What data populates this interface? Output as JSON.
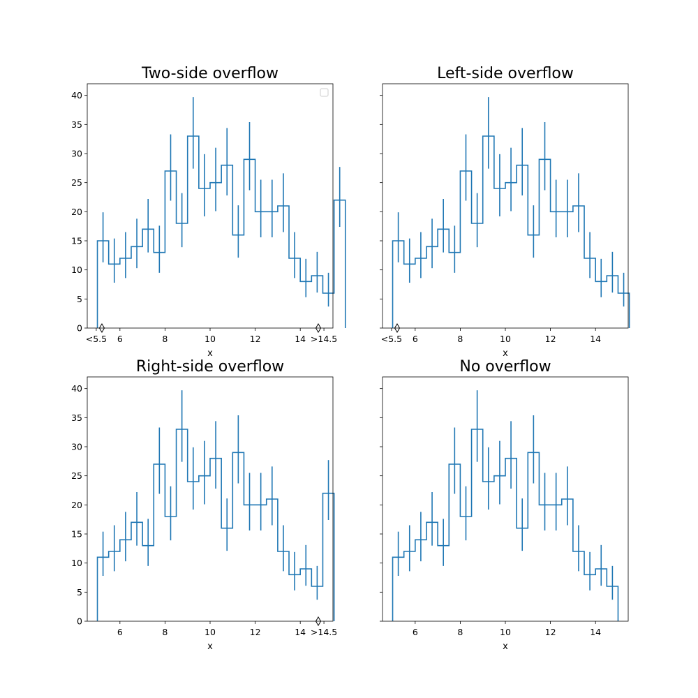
{
  "figure": {
    "colors": {
      "series": "#1f77b4",
      "axes": "#000000",
      "background": "#ffffff"
    }
  },
  "chart_data": [
    {
      "type": "histogram",
      "title": "Two-side overflow",
      "xlabel": "x",
      "ylabel": "",
      "xlim": [
        4.55,
        15.45
      ],
      "ylim": [
        0,
        42
      ],
      "xticks": [
        {
          "value": 4.95,
          "label": "<5.5"
        },
        {
          "value": 6,
          "label": "6"
        },
        {
          "value": 8,
          "label": "8"
        },
        {
          "value": 10,
          "label": "10"
        },
        {
          "value": 12,
          "label": "12"
        },
        {
          "value": 14,
          "label": "14"
        },
        {
          "value": 15.05,
          "label": ">14.5"
        }
      ],
      "yticks": [
        0,
        5,
        10,
        15,
        20,
        25,
        30,
        35,
        40
      ],
      "show_ytick_labels": true,
      "legend": {
        "placement": "top-right",
        "entries": []
      },
      "overflow_markers": [
        5.2,
        14.8
      ],
      "bins": [
        {
          "x0": 5.0,
          "x1": 5.5,
          "value": 15,
          "err_low": 11.3,
          "err_high": 19.9
        },
        {
          "x0": 5.5,
          "x1": 6.0,
          "value": 11,
          "err_low": 7.8,
          "err_high": 15.4
        },
        {
          "x0": 6.0,
          "x1": 6.5,
          "value": 12,
          "err_low": 8.6,
          "err_high": 16.5
        },
        {
          "x0": 6.5,
          "x1": 7.0,
          "value": 14,
          "err_low": 10.3,
          "err_high": 18.8
        },
        {
          "x0": 7.0,
          "x1": 7.5,
          "value": 17,
          "err_low": 13.0,
          "err_high": 22.2
        },
        {
          "x0": 7.5,
          "x1": 8.0,
          "value": 13,
          "err_low": 9.5,
          "err_high": 17.6
        },
        {
          "x0": 8.0,
          "x1": 8.5,
          "value": 27,
          "err_low": 21.9,
          "err_high": 33.3
        },
        {
          "x0": 8.5,
          "x1": 9.0,
          "value": 18,
          "err_low": 13.9,
          "err_high": 23.2
        },
        {
          "x0": 9.0,
          "x1": 9.5,
          "value": 33,
          "err_low": 27.4,
          "err_high": 39.7
        },
        {
          "x0": 9.5,
          "x1": 10.0,
          "value": 24,
          "err_low": 19.2,
          "err_high": 29.9
        },
        {
          "x0": 10.0,
          "x1": 10.5,
          "value": 25,
          "err_low": 20.1,
          "err_high": 31.0
        },
        {
          "x0": 10.5,
          "x1": 11.0,
          "value": 28,
          "err_low": 22.8,
          "err_high": 34.4
        },
        {
          "x0": 11.0,
          "x1": 11.5,
          "value": 16,
          "err_low": 12.1,
          "err_high": 21.1
        },
        {
          "x0": 11.5,
          "x1": 12.0,
          "value": 29,
          "err_low": 23.7,
          "err_high": 35.4
        },
        {
          "x0": 12.0,
          "x1": 12.5,
          "value": 20,
          "err_low": 15.6,
          "err_high": 25.5
        },
        {
          "x0": 12.5,
          "x1": 13.0,
          "value": 20,
          "err_low": 15.6,
          "err_high": 25.5
        },
        {
          "x0": 13.0,
          "x1": 13.5,
          "value": 21,
          "err_low": 16.5,
          "err_high": 26.6
        },
        {
          "x0": 13.5,
          "x1": 14.0,
          "value": 12,
          "err_low": 8.6,
          "err_high": 16.5
        },
        {
          "x0": 14.0,
          "x1": 14.5,
          "value": 8,
          "err_low": 5.3,
          "err_high": 11.9
        },
        {
          "x0": 14.5,
          "x1": 15.0,
          "value": 9,
          "err_low": 6.1,
          "err_high": 13.1
        },
        {
          "x0": 15.0,
          "x1": 15.5,
          "value": 6,
          "err_low": 3.7,
          "err_high": 9.5
        },
        {
          "x0": 15.5,
          "x1": 16.0,
          "value": 22,
          "err_low": 17.4,
          "err_high": 27.7
        }
      ]
    },
    {
      "type": "histogram",
      "title": "Left-side overflow",
      "xlabel": "x",
      "ylabel": "",
      "xlim": [
        4.55,
        15.45
      ],
      "ylim": [
        0,
        42
      ],
      "xticks": [
        {
          "value": 4.95,
          "label": "<5.5"
        },
        {
          "value": 6,
          "label": "6"
        },
        {
          "value": 8,
          "label": "8"
        },
        {
          "value": 10,
          "label": "10"
        },
        {
          "value": 12,
          "label": "12"
        },
        {
          "value": 14,
          "label": "14"
        }
      ],
      "yticks": [
        0,
        5,
        10,
        15,
        20,
        25,
        30,
        35,
        40
      ],
      "show_ytick_labels": false,
      "overflow_markers": [
        5.2
      ],
      "bins": [
        {
          "x0": 5.0,
          "x1": 5.5,
          "value": 15,
          "err_low": 11.3,
          "err_high": 19.9
        },
        {
          "x0": 5.5,
          "x1": 6.0,
          "value": 11,
          "err_low": 7.8,
          "err_high": 15.4
        },
        {
          "x0": 6.0,
          "x1": 6.5,
          "value": 12,
          "err_low": 8.6,
          "err_high": 16.5
        },
        {
          "x0": 6.5,
          "x1": 7.0,
          "value": 14,
          "err_low": 10.3,
          "err_high": 18.8
        },
        {
          "x0": 7.0,
          "x1": 7.5,
          "value": 17,
          "err_low": 13.0,
          "err_high": 22.2
        },
        {
          "x0": 7.5,
          "x1": 8.0,
          "value": 13,
          "err_low": 9.5,
          "err_high": 17.6
        },
        {
          "x0": 8.0,
          "x1": 8.5,
          "value": 27,
          "err_low": 21.9,
          "err_high": 33.3
        },
        {
          "x0": 8.5,
          "x1": 9.0,
          "value": 18,
          "err_low": 13.9,
          "err_high": 23.2
        },
        {
          "x0": 9.0,
          "x1": 9.5,
          "value": 33,
          "err_low": 27.4,
          "err_high": 39.7
        },
        {
          "x0": 9.5,
          "x1": 10.0,
          "value": 24,
          "err_low": 19.2,
          "err_high": 29.9
        },
        {
          "x0": 10.0,
          "x1": 10.5,
          "value": 25,
          "err_low": 20.1,
          "err_high": 31.0
        },
        {
          "x0": 10.5,
          "x1": 11.0,
          "value": 28,
          "err_low": 22.8,
          "err_high": 34.4
        },
        {
          "x0": 11.0,
          "x1": 11.5,
          "value": 16,
          "err_low": 12.1,
          "err_high": 21.1
        },
        {
          "x0": 11.5,
          "x1": 12.0,
          "value": 29,
          "err_low": 23.7,
          "err_high": 35.4
        },
        {
          "x0": 12.0,
          "x1": 12.5,
          "value": 20,
          "err_low": 15.6,
          "err_high": 25.5
        },
        {
          "x0": 12.5,
          "x1": 13.0,
          "value": 20,
          "err_low": 15.6,
          "err_high": 25.5
        },
        {
          "x0": 13.0,
          "x1": 13.5,
          "value": 21,
          "err_low": 16.5,
          "err_high": 26.6
        },
        {
          "x0": 13.5,
          "x1": 14.0,
          "value": 12,
          "err_low": 8.6,
          "err_high": 16.5
        },
        {
          "x0": 14.0,
          "x1": 14.5,
          "value": 8,
          "err_low": 5.3,
          "err_high": 11.9
        },
        {
          "x0": 14.5,
          "x1": 15.0,
          "value": 9,
          "err_low": 6.1,
          "err_high": 13.1
        },
        {
          "x0": 15.0,
          "x1": 15.5,
          "value": 6,
          "err_low": 3.7,
          "err_high": 9.5
        }
      ]
    },
    {
      "type": "histogram",
      "title": "Right-side overflow",
      "xlabel": "x",
      "ylabel": "",
      "xlim": [
        4.55,
        15.45
      ],
      "ylim": [
        0,
        42
      ],
      "xticks": [
        {
          "value": 6,
          "label": "6"
        },
        {
          "value": 8,
          "label": "8"
        },
        {
          "value": 10,
          "label": "10"
        },
        {
          "value": 12,
          "label": "12"
        },
        {
          "value": 14,
          "label": "14"
        },
        {
          "value": 15.05,
          "label": ">14.5"
        }
      ],
      "yticks": [
        0,
        5,
        10,
        15,
        20,
        25,
        30,
        35,
        40
      ],
      "show_ytick_labels": true,
      "overflow_markers": [
        14.8
      ],
      "bins": [
        {
          "x0": 5.0,
          "x1": 5.5,
          "value": 11,
          "err_low": 7.8,
          "err_high": 15.4
        },
        {
          "x0": 5.5,
          "x1": 6.0,
          "value": 12,
          "err_low": 8.6,
          "err_high": 16.5
        },
        {
          "x0": 6.0,
          "x1": 6.5,
          "value": 14,
          "err_low": 10.3,
          "err_high": 18.8
        },
        {
          "x0": 6.5,
          "x1": 7.0,
          "value": 17,
          "err_low": 13.0,
          "err_high": 22.2
        },
        {
          "x0": 7.0,
          "x1": 7.5,
          "value": 13,
          "err_low": 9.5,
          "err_high": 17.6
        },
        {
          "x0": 7.5,
          "x1": 8.0,
          "value": 27,
          "err_low": 21.9,
          "err_high": 33.3
        },
        {
          "x0": 8.0,
          "x1": 8.5,
          "value": 18,
          "err_low": 13.9,
          "err_high": 23.2
        },
        {
          "x0": 8.5,
          "x1": 9.0,
          "value": 33,
          "err_low": 27.4,
          "err_high": 39.7
        },
        {
          "x0": 9.0,
          "x1": 9.5,
          "value": 24,
          "err_low": 19.2,
          "err_high": 29.9
        },
        {
          "x0": 9.5,
          "x1": 10.0,
          "value": 25,
          "err_low": 20.1,
          "err_high": 31.0
        },
        {
          "x0": 10.0,
          "x1": 10.5,
          "value": 28,
          "err_low": 22.8,
          "err_high": 34.4
        },
        {
          "x0": 10.5,
          "x1": 11.0,
          "value": 16,
          "err_low": 12.1,
          "err_high": 21.1
        },
        {
          "x0": 11.0,
          "x1": 11.5,
          "value": 29,
          "err_low": 23.7,
          "err_high": 35.4
        },
        {
          "x0": 11.5,
          "x1": 12.0,
          "value": 20,
          "err_low": 15.6,
          "err_high": 25.5
        },
        {
          "x0": 12.0,
          "x1": 12.5,
          "value": 20,
          "err_low": 15.6,
          "err_high": 25.5
        },
        {
          "x0": 12.5,
          "x1": 13.0,
          "value": 21,
          "err_low": 16.5,
          "err_high": 26.6
        },
        {
          "x0": 13.0,
          "x1": 13.5,
          "value": 12,
          "err_low": 8.6,
          "err_high": 16.5
        },
        {
          "x0": 13.5,
          "x1": 14.0,
          "value": 8,
          "err_low": 5.3,
          "err_high": 11.9
        },
        {
          "x0": 14.0,
          "x1": 14.5,
          "value": 9,
          "err_low": 6.1,
          "err_high": 13.1
        },
        {
          "x0": 14.5,
          "x1": 15.0,
          "value": 6,
          "err_low": 3.7,
          "err_high": 9.5
        },
        {
          "x0": 15.0,
          "x1": 15.5,
          "value": 22,
          "err_low": 17.4,
          "err_high": 27.7
        }
      ]
    },
    {
      "type": "histogram",
      "title": "No overflow",
      "xlabel": "x",
      "ylabel": "",
      "xlim": [
        4.55,
        15.45
      ],
      "ylim": [
        0,
        42
      ],
      "xticks": [
        {
          "value": 6,
          "label": "6"
        },
        {
          "value": 8,
          "label": "8"
        },
        {
          "value": 10,
          "label": "10"
        },
        {
          "value": 12,
          "label": "12"
        },
        {
          "value": 14,
          "label": "14"
        }
      ],
      "yticks": [
        0,
        5,
        10,
        15,
        20,
        25,
        30,
        35,
        40
      ],
      "show_ytick_labels": false,
      "overflow_markers": [],
      "bins": [
        {
          "x0": 5.0,
          "x1": 5.5,
          "value": 11,
          "err_low": 7.8,
          "err_high": 15.4
        },
        {
          "x0": 5.5,
          "x1": 6.0,
          "value": 12,
          "err_low": 8.6,
          "err_high": 16.5
        },
        {
          "x0": 6.0,
          "x1": 6.5,
          "value": 14,
          "err_low": 10.3,
          "err_high": 18.8
        },
        {
          "x0": 6.5,
          "x1": 7.0,
          "value": 17,
          "err_low": 13.0,
          "err_high": 22.2
        },
        {
          "x0": 7.0,
          "x1": 7.5,
          "value": 13,
          "err_low": 9.5,
          "err_high": 17.6
        },
        {
          "x0": 7.5,
          "x1": 8.0,
          "value": 27,
          "err_low": 21.9,
          "err_high": 33.3
        },
        {
          "x0": 8.0,
          "x1": 8.5,
          "value": 18,
          "err_low": 13.9,
          "err_high": 23.2
        },
        {
          "x0": 8.5,
          "x1": 9.0,
          "value": 33,
          "err_low": 27.4,
          "err_high": 39.7
        },
        {
          "x0": 9.0,
          "x1": 9.5,
          "value": 24,
          "err_low": 19.2,
          "err_high": 29.9
        },
        {
          "x0": 9.5,
          "x1": 10.0,
          "value": 25,
          "err_low": 20.1,
          "err_high": 31.0
        },
        {
          "x0": 10.0,
          "x1": 10.5,
          "value": 28,
          "err_low": 22.8,
          "err_high": 34.4
        },
        {
          "x0": 10.5,
          "x1": 11.0,
          "value": 16,
          "err_low": 12.1,
          "err_high": 21.1
        },
        {
          "x0": 11.0,
          "x1": 11.5,
          "value": 29,
          "err_low": 23.7,
          "err_high": 35.4
        },
        {
          "x0": 11.5,
          "x1": 12.0,
          "value": 20,
          "err_low": 15.6,
          "err_high": 25.5
        },
        {
          "x0": 12.0,
          "x1": 12.5,
          "value": 20,
          "err_low": 15.6,
          "err_high": 25.5
        },
        {
          "x0": 12.5,
          "x1": 13.0,
          "value": 21,
          "err_low": 16.5,
          "err_high": 26.6
        },
        {
          "x0": 13.0,
          "x1": 13.5,
          "value": 12,
          "err_low": 8.6,
          "err_high": 16.5
        },
        {
          "x0": 13.5,
          "x1": 14.0,
          "value": 8,
          "err_low": 5.3,
          "err_high": 11.9
        },
        {
          "x0": 14.0,
          "x1": 14.5,
          "value": 9,
          "err_low": 6.1,
          "err_high": 13.1
        },
        {
          "x0": 14.5,
          "x1": 15.0,
          "value": 6,
          "err_low": 3.7,
          "err_high": 9.5
        }
      ]
    }
  ]
}
